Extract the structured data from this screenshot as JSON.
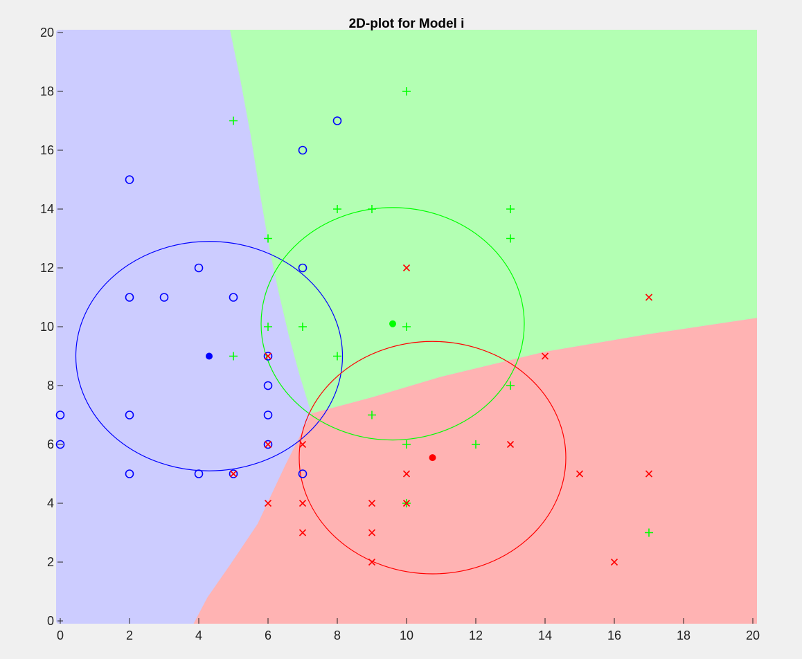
{
  "chart_data": {
    "type": "scatter",
    "title": "2D-plot for Model i",
    "xlabel": "",
    "ylabel": "",
    "xlim": [
      0,
      20
    ],
    "ylim": [
      0,
      20
    ],
    "xticks": [
      "0",
      "2",
      "4",
      "6",
      "8",
      "10",
      "12",
      "14",
      "16",
      "18",
      "20"
    ],
    "yticks": [
      "0",
      "2",
      "4",
      "6",
      "8",
      "10",
      "12",
      "14",
      "16",
      "18",
      "20"
    ],
    "grid": false,
    "legend": "none",
    "background_regions": [
      {
        "name": "class-blue-region",
        "color": "#ccccff",
        "description": "decision region left of boundary"
      },
      {
        "name": "class-green-region",
        "color": "#b3ffb3",
        "polygon": [
          [
            4.9,
            20
          ],
          [
            20,
            20
          ],
          [
            20,
            10.3
          ],
          [
            17,
            9.75
          ],
          [
            14,
            9.15
          ],
          [
            11,
            8.3
          ],
          [
            9,
            7.6
          ],
          [
            7.25,
            7.05
          ],
          [
            6.9,
            8.4
          ],
          [
            6.6,
            9.7
          ],
          [
            6.3,
            11.2
          ],
          [
            6.05,
            12.6
          ],
          [
            5.8,
            14.3
          ],
          [
            5.5,
            16.5
          ],
          [
            5.2,
            18.4
          ],
          [
            4.9,
            20
          ]
        ]
      },
      {
        "name": "class-red-region",
        "color": "#ffb3b3",
        "polygon": [
          [
            3.85,
            0
          ],
          [
            20,
            0
          ],
          [
            20,
            10.3
          ],
          [
            17,
            9.75
          ],
          [
            14,
            9.15
          ],
          [
            11,
            8.3
          ],
          [
            9,
            7.6
          ],
          [
            7.25,
            7.05
          ],
          [
            6.5,
            5.3
          ],
          [
            5.7,
            3.3
          ],
          [
            4.9,
            1.9
          ],
          [
            4.25,
            0.8
          ],
          [
            3.85,
            0
          ]
        ]
      }
    ],
    "series": [
      {
        "name": "",
        "marker": "circle",
        "color": "#0000ff",
        "points": [
          [
            8,
            17
          ],
          [
            7,
            16
          ],
          [
            2,
            15
          ],
          [
            4,
            12
          ],
          [
            7,
            12
          ],
          [
            2,
            11
          ],
          [
            3,
            11
          ],
          [
            5,
            11
          ],
          [
            6,
            9
          ],
          [
            6,
            8
          ],
          [
            0,
            7
          ],
          [
            2,
            7
          ],
          [
            6,
            7
          ],
          [
            0,
            6
          ],
          [
            6,
            6
          ],
          [
            2,
            5
          ],
          [
            4,
            5
          ],
          [
            5,
            5
          ],
          [
            7,
            5
          ]
        ]
      },
      {
        "name": "",
        "marker": "plus",
        "color": "#00ff00",
        "points": [
          [
            10,
            18
          ],
          [
            5,
            17
          ],
          [
            8,
            14
          ],
          [
            9,
            14
          ],
          [
            13,
            14
          ],
          [
            6,
            13
          ],
          [
            13,
            13
          ],
          [
            6,
            10
          ],
          [
            7,
            10
          ],
          [
            10,
            10
          ],
          [
            5,
            9
          ],
          [
            8,
            9
          ],
          [
            13,
            8
          ],
          [
            9,
            7
          ],
          [
            10,
            6
          ],
          [
            12,
            6
          ],
          [
            10,
            4
          ],
          [
            17,
            3
          ]
        ]
      },
      {
        "name": "",
        "marker": "x",
        "color": "#ff0000",
        "points": [
          [
            10,
            12
          ],
          [
            17,
            11
          ],
          [
            6,
            9
          ],
          [
            14,
            9
          ],
          [
            6,
            6
          ],
          [
            7,
            6
          ],
          [
            13,
            6
          ],
          [
            5,
            5
          ],
          [
            10,
            5
          ],
          [
            15,
            5
          ],
          [
            17,
            5
          ],
          [
            6,
            4
          ],
          [
            7,
            4
          ],
          [
            9,
            4
          ],
          [
            10,
            4
          ],
          [
            7,
            3
          ],
          [
            9,
            3
          ],
          [
            9,
            2
          ],
          [
            16,
            2
          ]
        ]
      }
    ],
    "centers": [
      {
        "color": "#0000ff",
        "x": 4.3,
        "y": 9.0,
        "rx": 3.85,
        "ry": 3.9
      },
      {
        "color": "#00ff00",
        "x": 9.6,
        "y": 10.1,
        "rx": 3.8,
        "ry": 3.95
      },
      {
        "color": "#ff0000",
        "x": 10.75,
        "y": 5.55,
        "rx": 3.85,
        "ry": 3.95
      }
    ]
  }
}
